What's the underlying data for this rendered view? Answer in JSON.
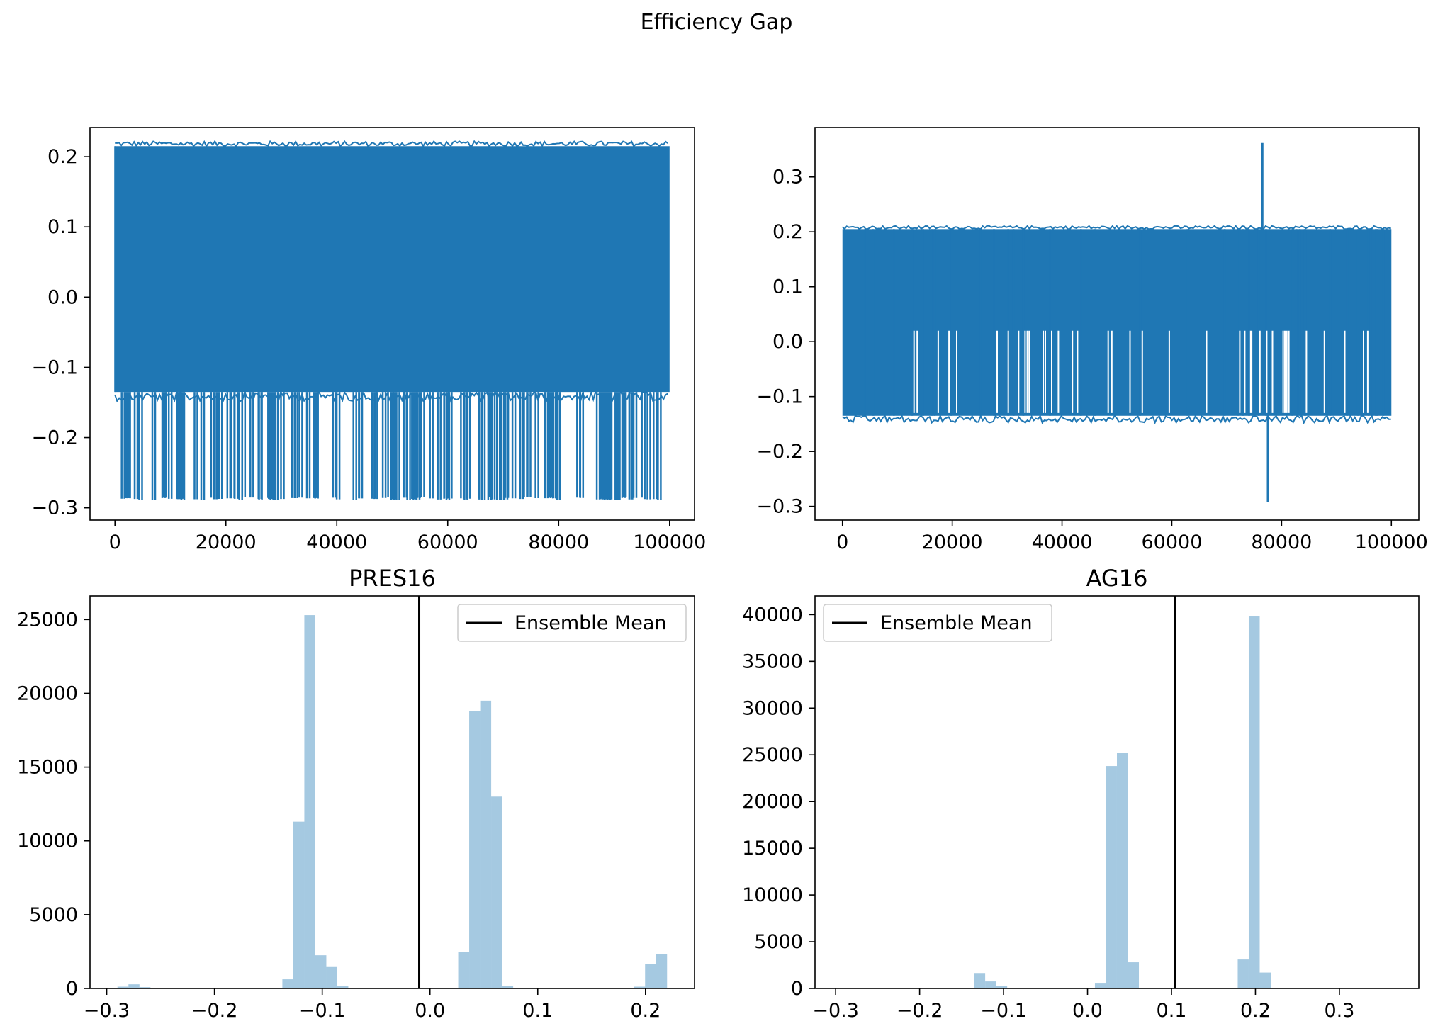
{
  "figure": {
    "title": "Efficiency Gap"
  },
  "chart_data": [
    {
      "type": "line",
      "title": "",
      "xlabel": "",
      "ylabel": "",
      "xlim": [
        -4500,
        104500
      ],
      "ylim": [
        -0.3175,
        0.2415
      ],
      "x_ticks": [
        0,
        20000,
        40000,
        60000,
        80000,
        100000
      ],
      "x_tick_labels": [
        "0",
        "20000",
        "40000",
        "60000",
        "80000",
        "100000"
      ],
      "y_ticks": [
        -0.3,
        -0.2,
        -0.1,
        0.0,
        0.1,
        0.2
      ],
      "y_tick_labels": [
        "−0.3",
        "−0.2",
        "−0.1",
        "0.0",
        "0.1",
        "0.2"
      ],
      "color": "#1f77b4",
      "series": [
        {
          "x_range": [
            0,
            100000
          ],
          "n_points": 100000,
          "band_min": -0.135,
          "band_max": 0.215,
          "overall_max": 0.222,
          "overall_min": -0.29,
          "spike_low": -0.285
        }
      ]
    },
    {
      "type": "line",
      "title": "",
      "xlabel": "",
      "ylabel": "",
      "xlim": [
        -5000,
        105000
      ],
      "ylim": [
        -0.325,
        0.39
      ],
      "x_ticks": [
        0,
        20000,
        40000,
        60000,
        80000,
        100000
      ],
      "x_tick_labels": [
        "0",
        "20000",
        "40000",
        "60000",
        "80000",
        "100000"
      ],
      "y_ticks": [
        -0.3,
        -0.2,
        -0.1,
        0.0,
        0.1,
        0.2,
        0.3
      ],
      "y_tick_labels": [
        "−0.3",
        "−0.2",
        "−0.1",
        "0.0",
        "0.1",
        "0.2",
        "0.3"
      ],
      "color": "#1f77b4",
      "series": [
        {
          "x_range": [
            0,
            100000
          ],
          "n_points": 100000,
          "band_min": -0.135,
          "band_max": 0.205,
          "overall_max": 0.362,
          "overall_min": -0.292,
          "max_at_x": 76500,
          "min_at_x": 77500,
          "spike_low": 0.02
        }
      ]
    },
    {
      "type": "bar",
      "title": "PRES16",
      "xlabel": "",
      "ylabel": "",
      "xlim": [
        -0.3155,
        0.2455
      ],
      "ylim": [
        0,
        26600
      ],
      "x_ticks": [
        -0.3,
        -0.2,
        -0.1,
        0.0,
        0.1,
        0.2
      ],
      "x_tick_labels": [
        "−0.3",
        "−0.2",
        "−0.1",
        "0.0",
        "0.1",
        "0.2"
      ],
      "y_ticks": [
        0,
        5000,
        10000,
        15000,
        20000,
        25000
      ],
      "y_tick_labels": [
        "0",
        "5000",
        "10000",
        "15000",
        "20000",
        "25000"
      ],
      "bin_edges_range": [
        -0.29,
        0.22
      ],
      "bins": 50,
      "bar_color": "#1f77b4",
      "bar_alpha": 0.4,
      "bin_left_edges": [
        -0.29,
        -0.2798,
        -0.2696,
        -0.137,
        -0.1268,
        -0.1166,
        -0.1064,
        -0.0962,
        -0.086,
        0.0262,
        0.0364,
        0.0466,
        0.0568,
        0.067,
        0.1894,
        0.1996,
        0.2098
      ],
      "bin_width": 0.0102,
      "counts": [
        120,
        280,
        90,
        620,
        11300,
        25300,
        2250,
        1500,
        180,
        2450,
        18800,
        19500,
        13000,
        150,
        120,
        1650,
        2350
      ],
      "mean_line": {
        "x": -0.01,
        "color": "#000000",
        "label": "Ensemble Mean"
      },
      "legend": {
        "placement": "upper right",
        "entries": [
          "Ensemble Mean"
        ]
      }
    },
    {
      "type": "bar",
      "title": "AG16",
      "xlabel": "",
      "ylabel": "",
      "xlim": [
        -0.3246,
        0.3946
      ],
      "ylim": [
        0,
        42000
      ],
      "x_ticks": [
        -0.3,
        -0.2,
        -0.1,
        0.0,
        0.1,
        0.2,
        0.3
      ],
      "x_tick_labels": [
        "−0.3",
        "−0.2",
        "−0.1",
        "0.0",
        "0.1",
        "0.2",
        "0.3"
      ],
      "y_ticks": [
        0,
        5000,
        10000,
        15000,
        20000,
        25000,
        30000,
        35000,
        40000
      ],
      "y_tick_labels": [
        "0",
        "5000",
        "10000",
        "15000",
        "20000",
        "25000",
        "30000",
        "35000",
        "40000"
      ],
      "bin_edges_range": [
        -0.292,
        0.362
      ],
      "bins": 50,
      "bar_color": "#1f77b4",
      "bar_alpha": 0.4,
      "bin_left_edges": [
        -0.135,
        -0.1219,
        -0.1088,
        0.0088,
        0.0219,
        0.035,
        0.0481,
        0.1789,
        0.192,
        0.2051
      ],
      "bin_width": 0.01308,
      "counts": [
        1650,
        750,
        300,
        600,
        23800,
        25200,
        2800,
        3100,
        39800,
        1700
      ],
      "mean_line": {
        "x": 0.104,
        "color": "#000000",
        "label": "Ensemble Mean"
      },
      "legend": {
        "placement": "upper left",
        "entries": [
          "Ensemble Mean"
        ]
      }
    }
  ]
}
